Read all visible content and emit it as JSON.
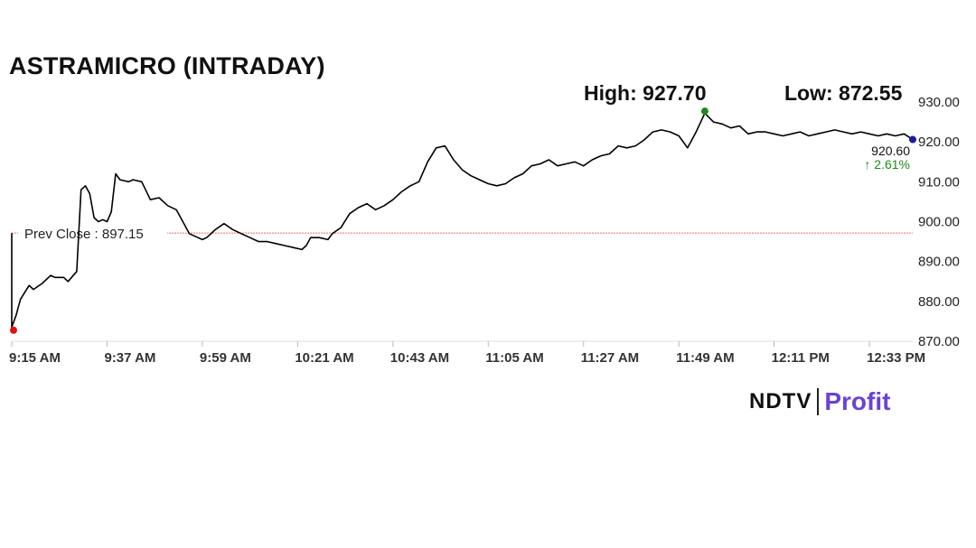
{
  "chart_title": "ASTRAMICRO (INTRADAY)",
  "high_label": "High: 927.70",
  "low_label": "Low: 872.55",
  "brand": {
    "name_left": "NDTV",
    "name_right": "Profit"
  },
  "colors": {
    "line": "#000000",
    "prev_close": "#e86a6a",
    "high_marker": "#1a8a1a",
    "low_marker": "#e01010",
    "last_marker": "#1a1aa0",
    "change_up": "#1a8a1a"
  },
  "chart_data": {
    "type": "line",
    "ylim": [
      870,
      930
    ],
    "yticks": [
      "930.00",
      "920.00",
      "910.00",
      "900.00",
      "890.00",
      "880.00",
      "870.00"
    ],
    "xticks": [
      "9:15 AM",
      "9:37 AM",
      "9:59 AM",
      "10:21 AM",
      "10:43 AM",
      "11:05 AM",
      "11:27 AM",
      "11:49 AM",
      "12:11 PM",
      "12:33 PM"
    ],
    "prev_close": 897.15,
    "prev_close_label": "Prev Close : 897.15",
    "last_price": "920.60",
    "change_pct": "2.61%",
    "high": 927.7,
    "low": 872.55,
    "series": [
      {
        "x": [
          "9:15",
          "9:16",
          "9:17",
          "9:19",
          "9:20",
          "9:22",
          "9:24",
          "9:25",
          "9:27",
          "9:28",
          "9:30",
          "9:31",
          "9:32",
          "9:33",
          "9:34",
          "9:35",
          "9:36",
          "9:37",
          "9:38",
          "9:39",
          "9:40",
          "9:42",
          "9:43",
          "9:45",
          "9:47",
          "9:49",
          "9:51",
          "9:53",
          "9:55",
          "9:56",
          "9:58",
          "9:59",
          "10:00",
          "10:01",
          "10:02",
          "10:04",
          "10:06",
          "10:08",
          "10:10",
          "10:12",
          "10:14",
          "10:16",
          "10:18",
          "10:20",
          "10:22",
          "10:23",
          "10:24",
          "10:26",
          "10:28",
          "10:29",
          "10:31",
          "10:33",
          "10:35",
          "10:37",
          "10:39",
          "10:41",
          "10:43",
          "10:45",
          "10:47",
          "10:49",
          "10:51",
          "10:53",
          "10:55",
          "10:57",
          "10:59",
          "11:01",
          "11:03",
          "11:05",
          "11:07",
          "11:09",
          "11:11",
          "11:13",
          "11:15",
          "11:17",
          "11:19",
          "11:21",
          "11:23",
          "11:25",
          "11:27",
          "11:29",
          "11:31",
          "11:33",
          "11:35",
          "11:37",
          "11:39",
          "11:41",
          "11:43",
          "11:45",
          "11:47",
          "11:49",
          "11:51",
          "11:53",
          "11:55",
          "11:57",
          "11:59",
          "12:01",
          "12:03",
          "12:05",
          "12:07",
          "12:09",
          "12:11",
          "12:13",
          "12:15",
          "12:17",
          "12:19",
          "12:21",
          "12:23",
          "12:25",
          "12:27",
          "12:29",
          "12:31",
          "12:33",
          "12:35",
          "12:37",
          "12:39",
          "12:41",
          "12:43"
        ],
        "y": [
          873.5,
          876.5,
          880.5,
          884.0,
          883.0,
          884.5,
          886.5,
          886.0,
          886.0,
          885.0,
          887.5,
          908.0,
          909.0,
          907.0,
          901.0,
          900.0,
          900.5,
          900.0,
          902.5,
          912.0,
          910.5,
          910.0,
          910.5,
          910.0,
          905.5,
          906.0,
          904.0,
          903.0,
          899.0,
          897.0,
          896.0,
          895.5,
          896.0,
          897.0,
          898.0,
          899.5,
          898.0,
          897.0,
          896.0,
          895.0,
          895.0,
          894.5,
          894.0,
          893.5,
          893.0,
          894.0,
          896.0,
          896.0,
          895.5,
          897.0,
          898.5,
          902.0,
          903.5,
          904.5,
          903.0,
          904.0,
          905.5,
          907.5,
          909.0,
          910.0,
          915.0,
          918.5,
          919.0,
          915.5,
          913.0,
          911.5,
          910.5,
          909.5,
          909.0,
          909.5,
          911.0,
          912.0,
          914.0,
          914.5,
          915.5,
          914.0,
          914.5,
          915.0,
          914.0,
          915.5,
          916.5,
          917.0,
          919.0,
          918.5,
          919.0,
          920.5,
          922.5,
          923.0,
          922.5,
          921.5,
          918.5,
          922.5,
          927.2,
          925.0,
          924.5,
          923.5,
          924.0,
          922.0,
          922.5,
          922.5,
          922.0,
          921.5,
          922.0,
          922.5,
          921.5,
          922.0,
          922.5,
          923.0,
          922.5,
          922.0,
          922.5,
          922.0,
          921.5,
          922.0,
          921.5,
          922.0,
          920.6
        ]
      }
    ]
  }
}
